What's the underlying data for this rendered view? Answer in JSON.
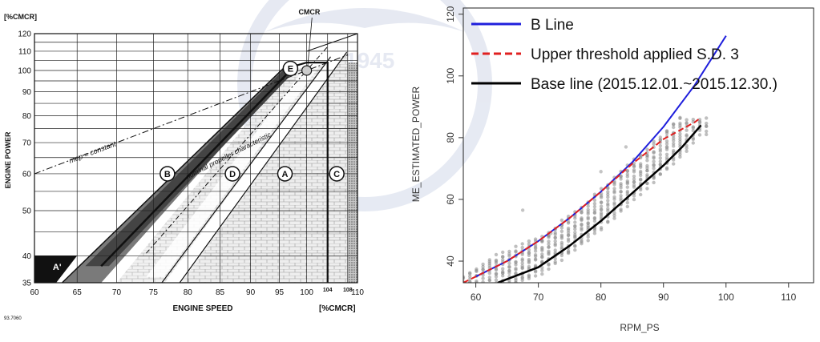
{
  "watermark": {
    "year": "1945"
  },
  "chart_data": [
    {
      "type": "line",
      "title": "",
      "xlabel": "ENGINE SPEED",
      "ylabel": "ENGINE POWER",
      "x_unit": "[%CMCR]",
      "y_unit": "[%CMCR]",
      "xlim": [
        60,
        110
      ],
      "ylim": [
        35,
        120
      ],
      "x_ticks": [
        60,
        65,
        70,
        75,
        80,
        85,
        90,
        95,
        100,
        104,
        108,
        110
      ],
      "y_ticks": [
        35,
        40,
        50,
        60,
        70,
        80,
        90,
        100,
        110,
        120
      ],
      "scale": "log-log",
      "grid": true,
      "figure_code": "93.7060",
      "annotations": {
        "cmcr": "CMCR",
        "mep": "mep = constant",
        "propeller": "nominal propeller characteristic",
        "zone_a": "A",
        "zone_a_prime": "A'",
        "zone_b": "B",
        "zone_c": "C",
        "zone_d": "D",
        "zone_e": "E"
      },
      "series": [
        {
          "id": "mep",
          "points": [
            [
              60,
              60
            ],
            [
              100,
              100
            ],
            [
              108,
              108
            ]
          ]
        },
        {
          "id": "propeller",
          "points": [
            [
              74,
              40.5
            ],
            [
              80,
              51.2
            ],
            [
              90,
              72.9
            ],
            [
              100,
              100
            ],
            [
              104,
              112.5
            ]
          ]
        },
        {
          "id": "zone_b_upper",
          "points": [
            [
              63.2,
              35
            ],
            [
              95.5,
              100.5
            ]
          ]
        },
        {
          "id": "zone_b_lower",
          "points": [
            [
              68,
              38
            ],
            [
              97.5,
              101.5
            ]
          ]
        },
        {
          "id": "zone_d_upper",
          "points": [
            [
              76.2,
              35
            ],
            [
              104.6,
              107
            ]
          ]
        },
        {
          "id": "zone_d_lower",
          "points": [
            [
              78.8,
              35
            ],
            [
              107.8,
              109.5
            ]
          ]
        }
      ]
    },
    {
      "type": "line",
      "title": "",
      "xlabel": "RPM_PS",
      "ylabel": "ME_ESTIMATED_POWER",
      "xlim": [
        58,
        114
      ],
      "ylim": [
        33,
        122
      ],
      "x_ticks": [
        60,
        70,
        80,
        90,
        100,
        110
      ],
      "y_ticks": [
        40,
        60,
        80,
        100,
        120
      ],
      "grid": false,
      "legend_position": "top-left",
      "series": [
        {
          "name": "B Line",
          "color": "#1f1fdc",
          "style": "solid",
          "x": [
            60,
            65,
            70,
            75,
            80,
            85,
            90,
            95,
            100
          ],
          "y": [
            35,
            40,
            46.5,
            54,
            62.5,
            72,
            83.5,
            97,
            113
          ]
        },
        {
          "name": "Upper threshold applied S.D. 3",
          "color": "#e02020",
          "style": "dashed",
          "x": [
            58,
            60,
            65,
            70,
            75,
            80,
            85,
            90,
            95,
            96
          ],
          "y": [
            33,
            35,
            40,
            46.5,
            54,
            62.5,
            71.5,
            79.5,
            85,
            86.5
          ]
        },
        {
          "name": "Base line (2015.12.01.~2015.12.30.)",
          "color": "#000000",
          "style": "solid",
          "x": [
            63.5,
            70,
            75,
            80,
            85,
            90,
            93,
            96
          ],
          "y": [
            33,
            38,
            45,
            53,
            62,
            71,
            77,
            84
          ]
        }
      ],
      "scatter": {
        "color": "#8a8a8a",
        "x_range": [
          58,
          98
        ],
        "note": "dense vertical columns of grey points around base line"
      }
    }
  ]
}
